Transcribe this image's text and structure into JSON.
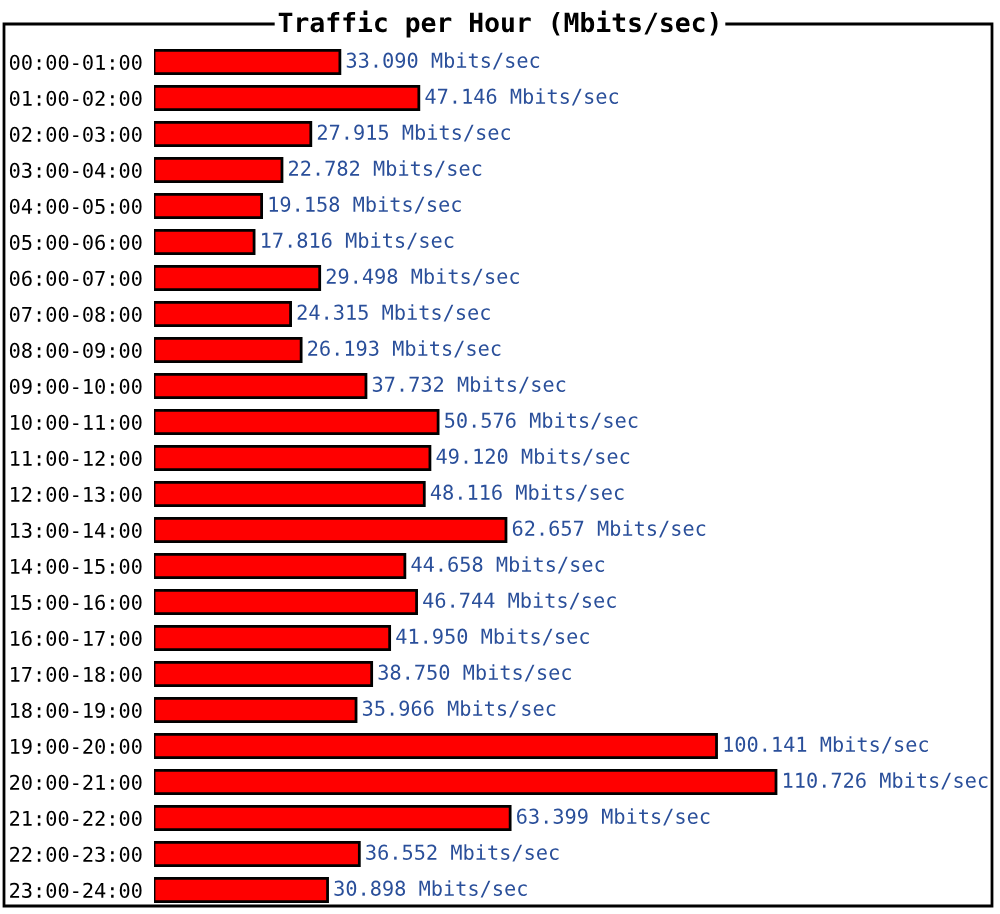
{
  "chart_data": {
    "type": "bar",
    "orientation": "horizontal",
    "title": "Traffic per Hour (Mbits/sec)",
    "categories": [
      "00:00-01:00",
      "01:00-02:00",
      "02:00-03:00",
      "03:00-04:00",
      "04:00-05:00",
      "05:00-06:00",
      "06:00-07:00",
      "07:00-08:00",
      "08:00-09:00",
      "09:00-10:00",
      "10:00-11:00",
      "11:00-12:00",
      "12:00-13:00",
      "13:00-14:00",
      "14:00-15:00",
      "15:00-16:00",
      "16:00-17:00",
      "17:00-18:00",
      "18:00-19:00",
      "19:00-20:00",
      "20:00-21:00",
      "21:00-22:00",
      "22:00-23:00",
      "23:00-24:00"
    ],
    "values": [
      33.09,
      47.146,
      27.915,
      22.782,
      19.158,
      17.816,
      29.498,
      24.315,
      26.193,
      37.732,
      50.576,
      49.12,
      48.116,
      62.657,
      44.658,
      46.744,
      41.95,
      38.75,
      35.966,
      100.141,
      110.726,
      63.399,
      36.552,
      30.898
    ],
    "value_labels": [
      "33.090 Mbits/sec",
      "47.146 Mbits/sec",
      "27.915 Mbits/sec",
      "22.782 Mbits/sec",
      "19.158 Mbits/sec",
      "17.816 Mbits/sec",
      "29.498 Mbits/sec",
      "24.315 Mbits/sec",
      "26.193 Mbits/sec",
      "37.732 Mbits/sec",
      "50.576 Mbits/sec",
      "49.120 Mbits/sec",
      "48.116 Mbits/sec",
      "62.657 Mbits/sec",
      "44.658 Mbits/sec",
      "46.744 Mbits/sec",
      "41.950 Mbits/sec",
      "38.750 Mbits/sec",
      "35.966 Mbits/sec",
      "100.141 Mbits/sec",
      "110.726 Mbits/sec",
      "63.399 Mbits/sec",
      "36.552 Mbits/sec",
      "30.898 Mbits/sec"
    ],
    "color": "#ff0000"
  }
}
